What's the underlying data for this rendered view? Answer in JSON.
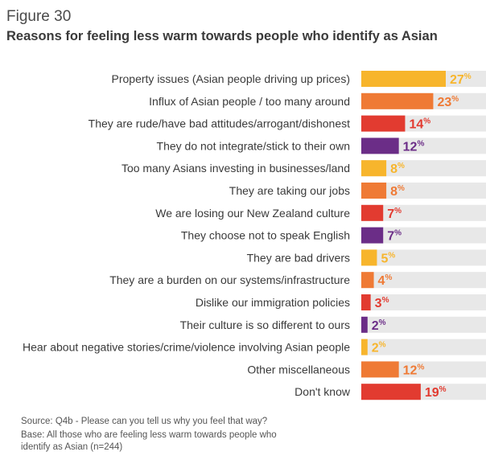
{
  "figure_label": "Figure 30",
  "title": "Reasons for feeling less warm towards people who identify as Asian",
  "source": "Source: Q4b - Please can you tell us why you feel that way?",
  "base": "Base: All those who are feeling less warm towards people who identify as Asian (n=244)",
  "percent_sign": "%",
  "chart_data": {
    "type": "bar",
    "orientation": "horizontal",
    "title": "Reasons for feeling less warm towards people who identify as Asian",
    "xlim": [
      0,
      27
    ],
    "categories": [
      "Property issues (Asian people driving up prices)",
      "Influx of Asian people / too many around",
      "They are rude/have bad attitudes/arrogant/dishonest",
      "They do not integrate/stick to their own",
      "Too many Asians investing in businesses/land",
      "They are taking our jobs",
      "We are losing our New Zealand culture",
      "They choose not to speak English",
      "They are bad drivers",
      "They are a burden on our systems/infrastructure",
      "Dislike our immigration policies",
      "Their culture is so different to ours",
      "Hear about negative stories/crime/violence involving Asian people",
      "Other miscellaneous",
      "Don't know"
    ],
    "values": [
      27,
      23,
      14,
      12,
      8,
      8,
      7,
      7,
      5,
      4,
      3,
      2,
      2,
      12,
      19
    ],
    "bar_colors": [
      "#f7b52c",
      "#ef7a35",
      "#e23b30",
      "#6b2d87",
      "#f7b52c",
      "#ef7a35",
      "#e23b30",
      "#6b2d87",
      "#f7b52c",
      "#ef7a35",
      "#e23b30",
      "#6b2d87",
      "#f7b52c",
      "#ef7a35",
      "#e23b30"
    ],
    "track_color": "#e8e8e8",
    "grid": false,
    "legend": "none"
  }
}
